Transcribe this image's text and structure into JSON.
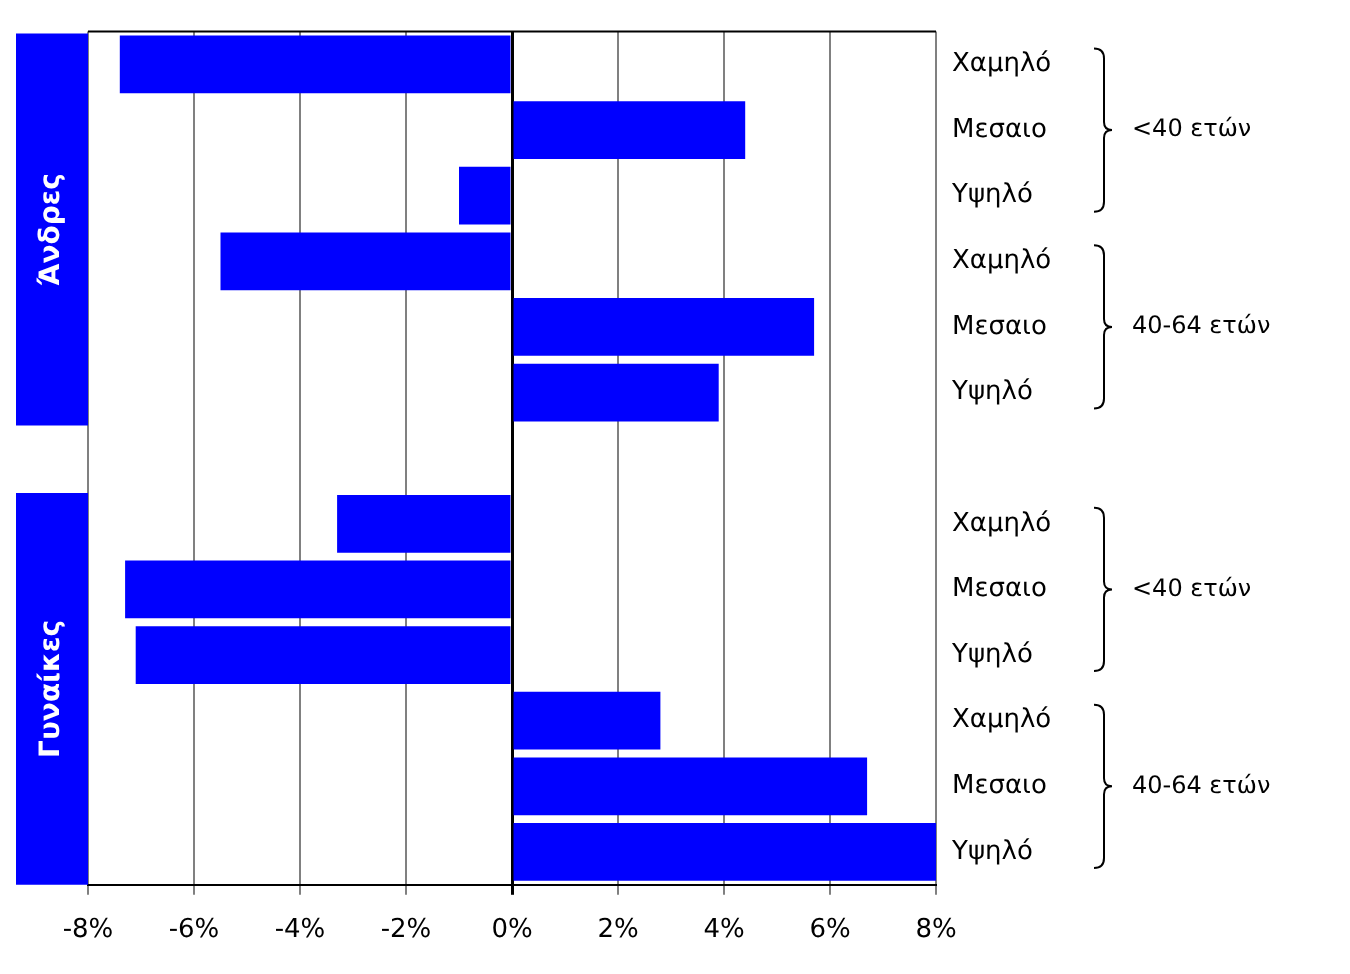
{
  "chart_data": {
    "type": "bar",
    "orientation": "horizontal",
    "categories": [
      "Χαμηλό",
      "Μεσαιο",
      "Υψηλό",
      "Χαμηλό",
      "Μεσαιο",
      "Υψηλό",
      null,
      "Χαμηλό",
      "Μεσαιο",
      "Υψηλό",
      "Χαμηλό",
      "Μεσαιο",
      "Υψηλό"
    ],
    "values": [
      -7.4,
      4.4,
      -1.0,
      -5.5,
      5.7,
      3.9,
      null,
      -3.3,
      -7.3,
      -7.1,
      2.8,
      6.7,
      8.0
    ],
    "color": "#0000ff",
    "xlim": [
      -8,
      8
    ],
    "xticks": [
      {
        "value": -8,
        "label": "-8%"
      },
      {
        "value": -6,
        "label": "-6%"
      },
      {
        "value": -4,
        "label": "-4%"
      },
      {
        "value": -2,
        "label": "-2%"
      },
      {
        "value": 0,
        "label": "0%"
      },
      {
        "value": 2,
        "label": "2%"
      },
      {
        "value": 4,
        "label": "4%"
      },
      {
        "value": 6,
        "label": "6%"
      },
      {
        "value": 8,
        "label": "8%"
      }
    ],
    "grid": "x",
    "annotations": [
      "Άνδρες",
      "Γυναίκες",
      "<40 ετών",
      "40-64 ετών",
      "<40 ετών",
      "40-64 ετών"
    ]
  }
}
